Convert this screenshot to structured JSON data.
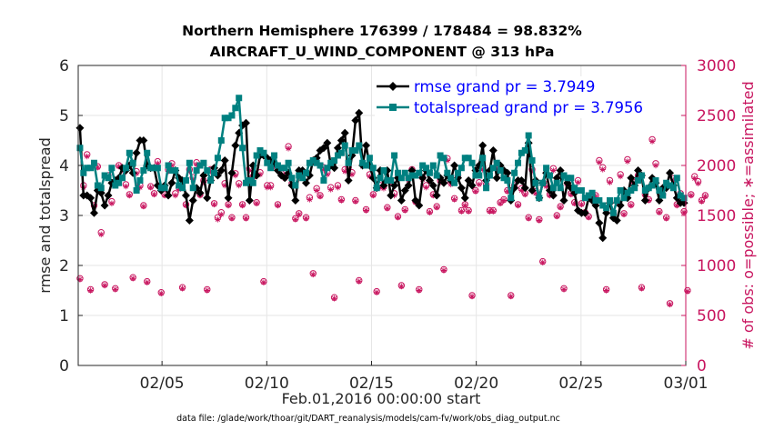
{
  "chart_data": {
    "type": "line",
    "title": [
      "Northern Hemisphere 176399 / 178484 = 98.832%",
      "AIRCRAFT_U_WIND_COMPONENT @ 313 hPa"
    ],
    "xlabel": "Feb.01,2016 00:00:00 start",
    "ylabel": "rmse and totalspread",
    "ylabel_right": "# of obs: o=possible; ∗=assimilated",
    "footnote": "data file: /glade/work/thoar/git/DART_reanalysis/models/cam-fv/work/obs_diag_output.nc",
    "xlim": [
      0,
      29
    ],
    "ylim": [
      0,
      6
    ],
    "ylim_right": [
      0,
      3000
    ],
    "x_ticks": [
      {
        "value": 4,
        "label": "02/05"
      },
      {
        "value": 9,
        "label": "02/10"
      },
      {
        "value": 14,
        "label": "02/15"
      },
      {
        "value": 19,
        "label": "02/20"
      },
      {
        "value": 24,
        "label": "02/25"
      },
      {
        "value": 29,
        "label": "03/01"
      }
    ],
    "y_ticks": [
      "0",
      "1",
      "2",
      "3",
      "4",
      "5",
      "6"
    ],
    "y_ticks_right": [
      "0",
      "500",
      "1000",
      "1500",
      "2000",
      "2500",
      "3000"
    ],
    "grid": true,
    "legend_position": "top-right",
    "colors": {
      "rmse": "#000000",
      "spread": "#008080",
      "obs": "#c8155f",
      "legend_text": "#0000ff"
    },
    "series": [
      {
        "name": "rmse grand pr = 3.7949",
        "marker": "diamond",
        "values": [
          4.75,
          3.4,
          3.4,
          3.35,
          3.05,
          3.5,
          3.45,
          3.2,
          3.4,
          3.65,
          3.7,
          3.75,
          3.95,
          3.9,
          4.0,
          3.85,
          4.25,
          4.5,
          4.5,
          4.0,
          3.95,
          3.95,
          3.6,
          3.5,
          3.6,
          3.4,
          3.65,
          3.9,
          3.75,
          3.7,
          3.4,
          2.9,
          3.3,
          3.55,
          3.45,
          3.8,
          3.35,
          3.7,
          3.95,
          3.8,
          3.9,
          4.1,
          3.35,
          3.85,
          4.4,
          4.65,
          4.8,
          4.85,
          3.3,
          4.0,
          3.8,
          4.2,
          4.2,
          4.15,
          4.1,
          4.05,
          3.9,
          3.8,
          3.75,
          3.85,
          3.6,
          3.3,
          3.9,
          3.9,
          3.65,
          3.8,
          4.1,
          4.15,
          4.3,
          4.35,
          4.45,
          4.0,
          3.95,
          4.35,
          4.5,
          4.65,
          3.7,
          4.2,
          4.9,
          5.05,
          4.0,
          4.4,
          4.0,
          3.75,
          3.55,
          3.9,
          3.6,
          3.9,
          3.4,
          3.6,
          3.75,
          3.3,
          3.5,
          3.6,
          3.9,
          3.3,
          3.2,
          3.75,
          3.9,
          3.7,
          3.6,
          3.4,
          3.75,
          3.65,
          3.8,
          3.7,
          4.0,
          3.75,
          3.55,
          3.35,
          3.7,
          3.6,
          3.9,
          4.0,
          4.4,
          3.7,
          3.9,
          4.3,
          3.75,
          4.0,
          3.9,
          3.85,
          3.3,
          3.55,
          3.7,
          3.7,
          3.55,
          4.45,
          3.5,
          3.7,
          3.35,
          3.65,
          3.85,
          3.5,
          3.4,
          3.75,
          3.9,
          3.3,
          3.65,
          3.55,
          3.45,
          3.1,
          3.05,
          3.05,
          3.35,
          3.3,
          3.2,
          2.85,
          2.55,
          3.05,
          3.25,
          2.95,
          2.9,
          3.2,
          3.5,
          3.35,
          3.75,
          3.6,
          3.9,
          3.8,
          3.3,
          3.55,
          3.75,
          3.65,
          3.3,
          3.55,
          3.55,
          3.85,
          3.6,
          3.35,
          3.25,
          3.25
        ]
      },
      {
        "name": "totalspread grand pr = 3.7956",
        "marker": "square",
        "values": [
          4.35,
          3.85,
          3.95,
          3.95,
          4.05,
          3.6,
          3.55,
          3.8,
          3.75,
          3.95,
          3.6,
          3.65,
          3.75,
          3.95,
          4.25,
          4.05,
          3.5,
          3.7,
          3.9,
          4.25,
          3.95,
          3.95,
          3.95,
          3.55,
          3.55,
          4.0,
          3.9,
          3.9,
          3.6,
          3.55,
          3.7,
          4.05,
          3.55,
          3.9,
          4.0,
          4.05,
          3.9,
          3.7,
          3.85,
          4.15,
          4.5,
          4.95,
          4.95,
          5.0,
          5.15,
          5.35,
          4.35,
          3.65,
          3.7,
          3.65,
          4.2,
          4.3,
          4.25,
          4.05,
          3.95,
          4.2,
          4.0,
          3.95,
          3.95,
          4.05,
          3.75,
          3.6,
          3.8,
          3.75,
          3.85,
          4.05,
          4.1,
          4.05,
          4.0,
          3.7,
          3.95,
          4.05,
          4.1,
          4.2,
          4.25,
          4.4,
          4.05,
          4.3,
          4.3,
          4.4,
          4.05,
          4.0,
          4.15,
          3.95,
          3.55,
          3.75,
          3.9,
          3.7,
          3.7,
          4.2,
          3.85,
          3.75,
          3.85,
          3.75,
          3.8,
          3.8,
          3.85,
          4.0,
          3.95,
          3.85,
          4.0,
          3.8,
          4.2,
          4.15,
          3.85,
          3.75,
          3.65,
          3.85,
          3.95,
          4.15,
          4.15,
          4.05,
          3.8,
          3.8,
          4.15,
          3.55,
          3.8,
          3.95,
          4.05,
          3.9,
          3.75,
          3.7,
          3.35,
          3.85,
          4.05,
          4.25,
          4.3,
          4.6,
          4.1,
          3.65,
          3.35,
          3.65,
          3.95,
          3.8,
          3.55,
          3.65,
          3.55,
          3.8,
          3.75,
          3.75,
          3.55,
          3.5,
          3.5,
          3.35,
          3.4,
          3.45,
          3.3,
          3.3,
          3.2,
          3.15,
          3.3,
          3.05,
          3.3,
          3.5,
          3.35,
          3.45,
          3.5,
          3.55,
          3.7,
          3.8,
          3.5,
          3.55,
          3.6,
          3.7,
          3.5,
          3.4,
          3.65,
          3.6,
          3.55,
          3.75,
          3.4,
          3.35
        ]
      },
      {
        "name": "possible",
        "marker": "circle",
        "axis": "right",
        "values": [
          870,
          1800,
          2110,
          760,
          1600,
          1990,
          1330,
          810,
          1900,
          1640,
          770,
          2000,
          1900,
          1810,
          1710,
          880,
          1940,
          1800,
          1600,
          840,
          1790,
          1720,
          2040,
          730,
          1710,
          1960,
          2020,
          1720,
          1780,
          780,
          1610,
          1960,
          1880,
          2030,
          1710,
          1850,
          760,
          1960,
          1620,
          1480,
          1530,
          1820,
          1610,
          1480,
          1920,
          1820,
          1610,
          1480,
          1970,
          1890,
          1630,
          1930,
          840,
          1800,
          1800,
          2010,
          1610,
          1920,
          1890,
          2190,
          1820,
          1470,
          1520,
          1900,
          1480,
          1680,
          920,
          1770,
          1700,
          1980,
          1930,
          1780,
          680,
          1800,
          1660,
          1960,
          1980,
          1930,
          1650,
          850,
          2010,
          1560,
          1910,
          1710,
          740,
          1800,
          1790,
          1580,
          1850,
          1720,
          1490,
          800,
          1560,
          1870,
          1960,
          1640,
          760,
          1880,
          1800,
          1540,
          1710,
          1590,
          1850,
          960,
          2070,
          1830,
          1670,
          1900,
          1550,
          1610,
          1550,
          700,
          1750,
          1830,
          1980,
          1810,
          1550,
          1550,
          1990,
          1630,
          1660,
          1750,
          700,
          1800,
          1610,
          1770,
          1720,
          1480,
          1960,
          1740,
          1460,
          1040,
          1810,
          1710,
          1970,
          1500,
          1590,
          770,
          1820,
          1720,
          1630,
          1850,
          1620,
          1530,
          1490,
          1660,
          1700,
          2050,
          1980,
          760,
          1850,
          1520,
          1640,
          1910,
          1520,
          2060,
          1610,
          1830,
          1900,
          780,
          1710,
          1660,
          2260,
          2020,
          1540,
          1710,
          1480,
          620,
          1870,
          1610,
          1720,
          1540,
          750,
          1710,
          1890,
          1840,
          1650,
          1700
        ]
      },
      {
        "name": "assimilated",
        "marker": "asterisk",
        "axis": "right",
        "values": [
          860,
          1780,
          2090,
          750,
          1590,
          1980,
          1310,
          800,
          1880,
          1620,
          760,
          1990,
          1880,
          1790,
          1700,
          870,
          1920,
          1780,
          1590,
          830,
          1780,
          1710,
          2020,
          720,
          1700,
          1940,
          2000,
          1700,
          1760,
          770,
          1600,
          1940,
          1860,
          2010,
          1700,
          1830,
          750,
          1940,
          1610,
          1460,
          1510,
          1800,
          1600,
          1470,
          1900,
          1800,
          1600,
          1470,
          1950,
          1870,
          1620,
          1910,
          830,
          1780,
          1780,
          1990,
          1600,
          1900,
          1870,
          2170,
          1800,
          1460,
          1510,
          1880,
          1470,
          1660,
          910,
          1750,
          1690,
          1960,
          1910,
          1760,
          670,
          1780,
          1650,
          1940,
          1960,
          1910,
          1640,
          840,
          1990,
          1550,
          1890,
          1700,
          730,
          1780,
          1770,
          1570,
          1830,
          1700,
          1480,
          790,
          1550,
          1850,
          1940,
          1630,
          750,
          1860,
          1780,
          1530,
          1700,
          1580,
          1830,
          950,
          2050,
          1810,
          1660,
          1880,
          1540,
          1600,
          1540,
          690,
          1740,
          1810,
          1960,
          1790,
          1540,
          1540,
          1970,
          1620,
          1650,
          1740,
          690,
          1780,
          1600,
          1750,
          1710,
          1470,
          1940,
          1720,
          1450,
          1030,
          1790,
          1700,
          1950,
          1490,
          1580,
          760,
          1800,
          1710,
          1620,
          1830,
          1610,
          1520,
          1480,
          1650,
          1690,
          2030,
          1960,
          750,
          1830,
          1510,
          1630,
          1890,
          1510,
          2040,
          1600,
          1810,
          1880,
          770,
          1700,
          1650,
          2240,
          2000,
          1530,
          1700,
          1470,
          610,
          1850,
          1600,
          1710,
          1530,
          740,
          1700,
          1870,
          1820,
          1640,
          1690
        ]
      }
    ]
  }
}
